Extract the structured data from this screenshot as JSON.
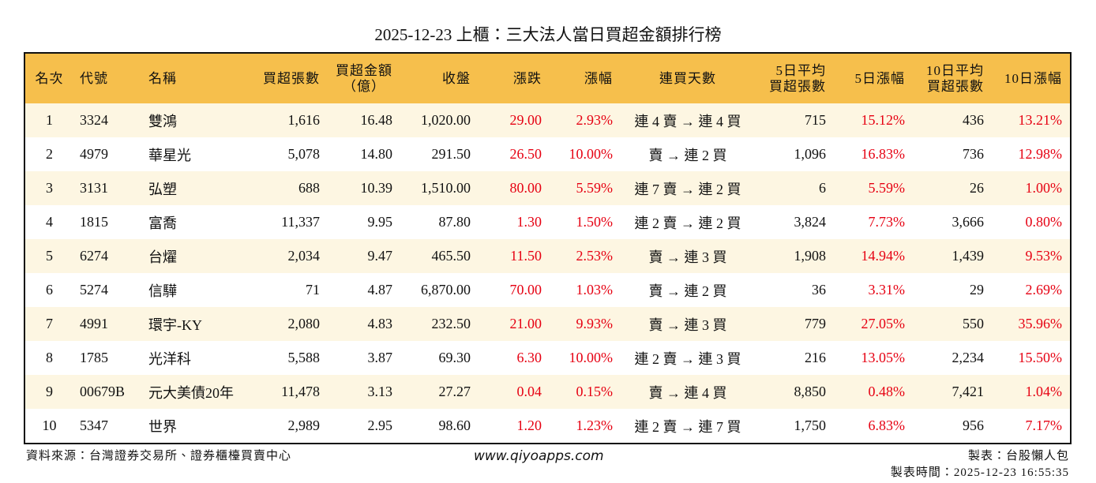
{
  "title": "2025-12-23 上櫃：三大法人當日買超金額排行榜",
  "table": {
    "header": [
      [
        "名次"
      ],
      [
        "代號"
      ],
      [
        "名稱"
      ],
      [
        "買超張數"
      ],
      [
        "買超金額",
        "（億）"
      ],
      [
        "收盤"
      ],
      [
        "漲跌"
      ],
      [
        "漲幅"
      ],
      [
        "連買天數"
      ],
      [
        "5日平均",
        "買超張數"
      ],
      [
        "5日漲幅"
      ],
      [
        "10日平均",
        "買超張數"
      ],
      [
        "10日漲幅"
      ]
    ],
    "rows": [
      [
        "1",
        "3324",
        "雙鴻",
        "1,616",
        "16.48",
        "1,020.00",
        "29.00",
        "2.93%",
        "連 4 賣 → 連 4 買",
        "715",
        "15.12%",
        "436",
        "13.21%"
      ],
      [
        "2",
        "4979",
        "華星光",
        "5,078",
        "14.80",
        "291.50",
        "26.50",
        "10.00%",
        "賣 → 連 2 買",
        "1,096",
        "16.83%",
        "736",
        "12.98%"
      ],
      [
        "3",
        "3131",
        "弘塑",
        "688",
        "10.39",
        "1,510.00",
        "80.00",
        "5.59%",
        "連 7 賣 → 連 2 買",
        "6",
        "5.59%",
        "26",
        "1.00%"
      ],
      [
        "4",
        "1815",
        "富喬",
        "11,337",
        "9.95",
        "87.80",
        "1.30",
        "1.50%",
        "連 2 賣 → 連 2 買",
        "3,824",
        "7.73%",
        "3,666",
        "0.80%"
      ],
      [
        "5",
        "6274",
        "台燿",
        "2,034",
        "9.47",
        "465.50",
        "11.50",
        "2.53%",
        "賣 → 連 3 買",
        "1,908",
        "14.94%",
        "1,439",
        "9.53%"
      ],
      [
        "6",
        "5274",
        "信驊",
        "71",
        "4.87",
        "6,870.00",
        "70.00",
        "1.03%",
        "賣 → 連 2 買",
        "36",
        "3.31%",
        "29",
        "2.69%"
      ],
      [
        "7",
        "4991",
        "環宇-KY",
        "2,080",
        "4.83",
        "232.50",
        "21.00",
        "9.93%",
        "賣 → 連 3 買",
        "779",
        "27.05%",
        "550",
        "35.96%"
      ],
      [
        "8",
        "1785",
        "光洋科",
        "5,588",
        "3.87",
        "69.30",
        "6.30",
        "10.00%",
        "連 2 賣 → 連 3 買",
        "216",
        "13.05%",
        "2,234",
        "15.50%"
      ],
      [
        "9",
        "00679B",
        "元大美債20年",
        "11,478",
        "3.13",
        "27.27",
        "0.04",
        "0.15%",
        "賣 → 連 4 買",
        "8,850",
        "0.48%",
        "7,421",
        "1.04%"
      ],
      [
        "10",
        "5347",
        "世界",
        "2,989",
        "2.95",
        "98.60",
        "1.20",
        "1.23%",
        "連 2 賣 → 連 7 買",
        "1,750",
        "6.83%",
        "956",
        "7.17%"
      ]
    ]
  },
  "footer": {
    "source": "資料來源：台灣證券交易所、證券櫃檯買賣中心",
    "website": "www.qiyoapps.com",
    "author": "製表：台股懶人包",
    "time": "製表時間：2025-12-23 16:55:35"
  }
}
